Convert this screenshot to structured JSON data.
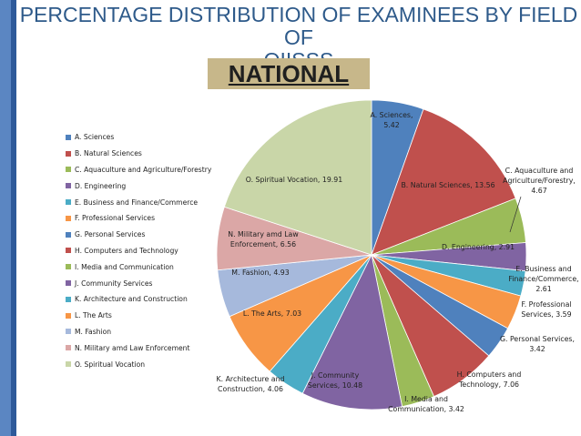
{
  "header": {
    "title_line1": "PERCENTAGE DISTRIBUTION OF EXAMINEES BY FIELD OF",
    "title_line2": "OIISSS",
    "subtitle": "NATIONAL"
  },
  "chart_data": {
    "type": "pie",
    "legend_position": "left",
    "slices": [
      {
        "legend": "A. Sciences",
        "name": "A. Sciences",
        "value": 5.42,
        "color": "#4f81bd",
        "label_lines": [
          "A. Sciences,",
          "5.42"
        ]
      },
      {
        "legend": "B. Natural Sciences",
        "name": "B. Natural Sciences",
        "value": 13.56,
        "color": "#c0504d",
        "label_lines": [
          "B. Natural Sciences, 13.56"
        ]
      },
      {
        "legend": "C. Aquaculture and Agriculture/Forestry",
        "name": "C. Aquaculture and Agriculture/Forestry",
        "value": 4.67,
        "color": "#9bbb59",
        "label_lines": [
          "C. Aquaculture and",
          "Agriculture/Forestry,",
          "4.67"
        ]
      },
      {
        "legend": "D. Engineering",
        "name": "D. Engineering",
        "value": 2.91,
        "color": "#8064a2",
        "label_lines": [
          "D. Engineering, 2.91"
        ]
      },
      {
        "legend": "E. Business and Finance/Commerce",
        "name": "E. Business and Finance/Commerce",
        "value": 2.61,
        "color": "#4bacc6",
        "label_lines": [
          "E. Business and",
          "Finance/Commerce,",
          "2.61"
        ]
      },
      {
        "legend": "F. Professional Services",
        "name": "F. Professional Services",
        "value": 3.59,
        "color": "#f79646",
        "label_lines": [
          "F. Professional",
          "Services, 3.59"
        ]
      },
      {
        "legend": "G. Personal Services",
        "name": "G. Personal Services",
        "value": 3.42,
        "color": "#4f81bd",
        "label_lines": [
          "G. Personal Services,",
          "3.42"
        ]
      },
      {
        "legend": "H. Computers and Technology",
        "name": "H. Computers and Technology",
        "value": 7.06,
        "color": "#c0504d",
        "label_lines": [
          "H. Computers and",
          "Technology, 7.06"
        ]
      },
      {
        "legend": "I. Media and Communication",
        "name": "I. Media and Communication",
        "value": 3.42,
        "color": "#9bbb59",
        "label_lines": [
          "I. Media and",
          "Communication, 3.42"
        ]
      },
      {
        "legend": "J. Community Services",
        "name": "J. Community Services",
        "value": 10.48,
        "color": "#8064a2",
        "label_lines": [
          "J. Community",
          "Services, 10.48"
        ]
      },
      {
        "legend": "K. Architecture and Construction",
        "name": "K. Architecture and Construction",
        "value": 4.06,
        "color": "#4bacc6",
        "label_lines": [
          "K. Architecture and",
          "Construction, 4.06"
        ]
      },
      {
        "legend": "L. The Arts",
        "name": "L. The Arts",
        "value": 7.03,
        "color": "#f79646",
        "label_lines": [
          "L. The Arts, 7.03"
        ]
      },
      {
        "legend": "M. Fashion",
        "name": "M. Fashion",
        "value": 4.93,
        "color": "#a6b9dc",
        "label_lines": [
          "M. Fashion, 4.93"
        ]
      },
      {
        "legend": "N. Military amd Law Enforcement",
        "name": "N. Military amd Law Enforcement",
        "value": 6.56,
        "color": "#dba7a6",
        "label_lines": [
          "N. Military amd Law",
          "Enforcement, 6.56"
        ]
      },
      {
        "legend": "O. Spiritual Vocation",
        "name": "O. Spiritual Vocation",
        "value": 19.91,
        "color": "#c9d6a8",
        "label_lines": [
          "O. Spiritual Vocation, 19.91"
        ]
      }
    ]
  }
}
